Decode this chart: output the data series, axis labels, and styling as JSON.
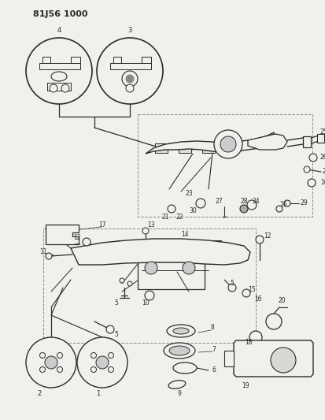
{
  "title": "81J56 1000",
  "bg": "#f5f5f0",
  "fg": "#2a2a2a",
  "fig_w": 4.14,
  "fig_h": 5.33,
  "dpi": 100
}
